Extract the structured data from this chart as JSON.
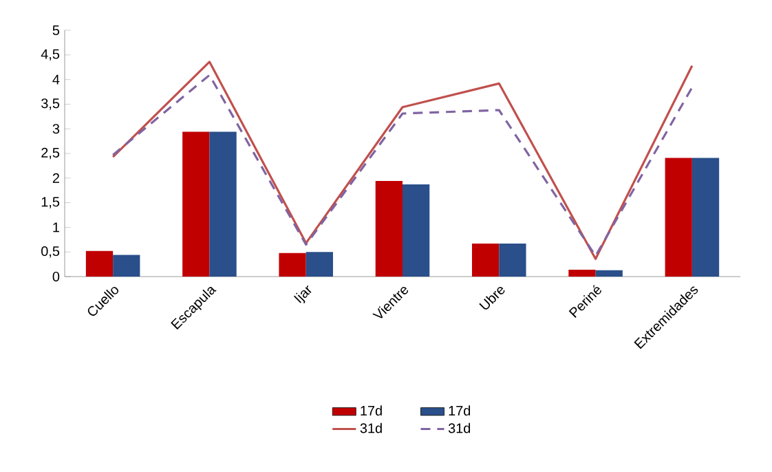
{
  "chart_data": {
    "type": "bar",
    "categories": [
      "Cuello",
      "Escapula",
      "Ijar",
      "Vientre",
      "Ubre",
      "Periné",
      "Extremidades"
    ],
    "series": [
      {
        "name": "17d",
        "color": "#c00000",
        "values": [
          0.52,
          2.94,
          0.48,
          1.94,
          0.67,
          0.14,
          2.41
        ]
      },
      {
        "name": "17d",
        "color": "#2a4f8a",
        "values": [
          0.44,
          2.94,
          0.5,
          1.87,
          0.67,
          0.13,
          2.41
        ]
      },
      {
        "name": "31d",
        "type": "line",
        "color": "#c0504d",
        "line_style": "solid",
        "values": [
          2.43,
          4.36,
          0.68,
          3.44,
          3.92,
          0.36,
          4.28
        ]
      },
      {
        "name": "31d",
        "type": "line",
        "color": "#8064a2",
        "line_style": "dashed",
        "values": [
          2.47,
          4.09,
          0.65,
          3.31,
          3.38,
          0.42,
          3.84
        ]
      }
    ],
    "ylim": [
      0,
      5
    ],
    "yticks": [
      0,
      {
        "value": 0.5,
        "label": "0,5"
      },
      1,
      {
        "value": 1.5,
        "label": "1,5"
      },
      2,
      {
        "value": 2.5,
        "label": "2,5"
      },
      3,
      {
        "value": 3.5,
        "label": "3,5"
      },
      4,
      {
        "value": 4.5,
        "label": "4,5"
      },
      5
    ],
    "grid": false,
    "marker": "none",
    "legend": "bottom"
  }
}
